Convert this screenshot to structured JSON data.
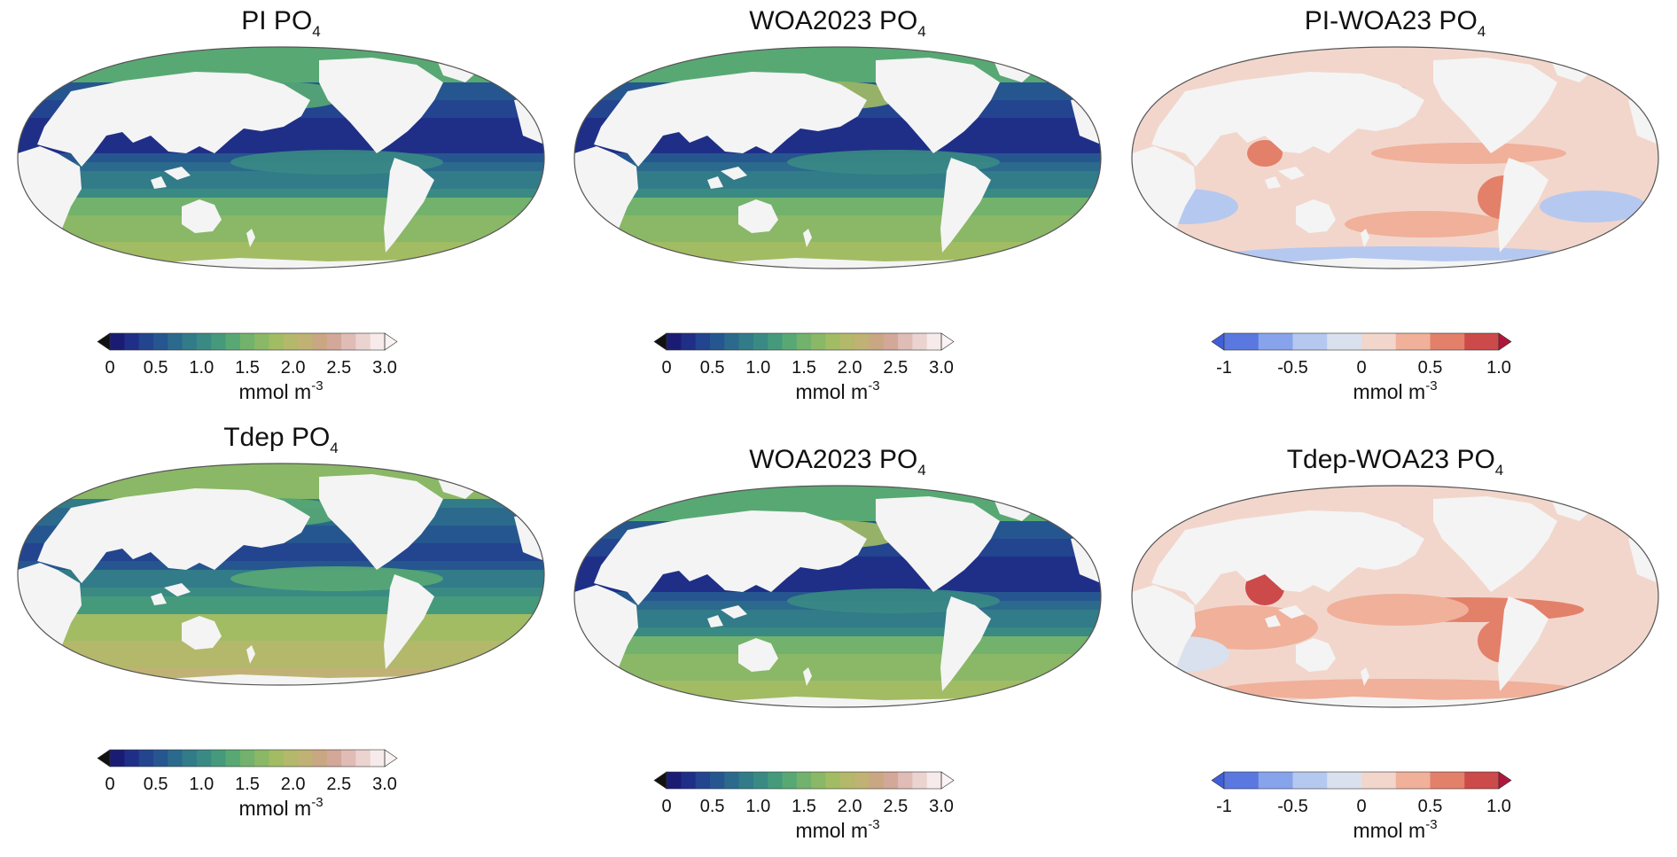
{
  "panels": [
    {
      "title_main": "PI PO",
      "title_sub": "4",
      "kind": "conc",
      "colorbar": {
        "ticks": [
          "0",
          "0.5",
          "1.0",
          "1.5",
          "2.0",
          "2.5",
          "3.0"
        ],
        "unit_main": "mmol m",
        "unit_sup": "-3"
      }
    },
    {
      "title_main": "WOA2023 PO",
      "title_sub": "4",
      "kind": "conc",
      "colorbar": {
        "ticks": [
          "0",
          "0.5",
          "1.0",
          "1.5",
          "2.0",
          "2.5",
          "3.0"
        ],
        "unit_main": "mmol m",
        "unit_sup": "-3"
      }
    },
    {
      "title_main": "PI-WOA23 PO",
      "title_sub": "4",
      "kind": "diff",
      "colorbar": {
        "ticks": [
          "-1",
          "-0.5",
          "0",
          "0.5",
          "1.0"
        ],
        "unit_main": "mmol m",
        "unit_sup": "-3"
      }
    },
    {
      "title_main": "Tdep PO",
      "title_sub": "4",
      "kind": "conc",
      "colorbar": {
        "ticks": [
          "0",
          "0.5",
          "1.0",
          "1.5",
          "2.0",
          "2.5",
          "3.0"
        ],
        "unit_main": "mmol m",
        "unit_sup": "-3"
      }
    },
    {
      "title_main": "WOA2023 PO",
      "title_sub": "4",
      "kind": "conc",
      "colorbar": {
        "ticks": [
          "0",
          "0.5",
          "1.0",
          "1.5",
          "2.0",
          "2.5",
          "3.0"
        ],
        "unit_main": "mmol m",
        "unit_sup": "-3"
      }
    },
    {
      "title_main": "Tdep-WOA23 PO",
      "title_sub": "4",
      "kind": "diff",
      "colorbar": {
        "ticks": [
          "-1",
          "-0.5",
          "0",
          "0.5",
          "1.0"
        ],
        "unit_main": "mmol m",
        "unit_sup": "-3"
      }
    }
  ],
  "colors": {
    "land": "#f4f4f4",
    "map_outline": "#555555",
    "conc_under": "#111111",
    "conc_over": "#fbf3f3",
    "conc_scale": [
      "#1a1c74",
      "#1f2f88",
      "#23448f",
      "#26568f",
      "#2b6a8c",
      "#327b88",
      "#3a8a84",
      "#469a7c",
      "#58a874",
      "#72b26c",
      "#8ab866",
      "#a2bc64",
      "#b3b86a",
      "#bfb274",
      "#c9a782",
      "#d3a898",
      "#e0bcb6",
      "#ebd3d0",
      "#f6ebea"
    ],
    "diff_under": "#3f5fd8",
    "diff_over": "#b0163c",
    "diff_scale": [
      "#5a78e0",
      "#87a3ec",
      "#b5c8f0",
      "#d9e0ee",
      "#f2d6cc",
      "#f0b09a",
      "#e3806a",
      "#cc4a4a"
    ]
  }
}
